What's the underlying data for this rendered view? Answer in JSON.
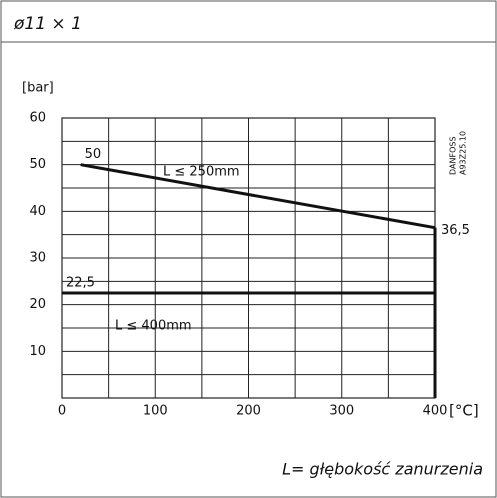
{
  "header": "ø11 × 1",
  "footer": "L= głębokość zanurzenia",
  "code": [
    "DANFOSS",
    "A93Z25.10"
  ],
  "chart_data": {
    "type": "line",
    "ylabel": "[bar]",
    "xlabel": "[°C]",
    "xlim": [
      0,
      400
    ],
    "xticks": [
      0,
      100,
      200,
      300,
      400
    ],
    "xminor": [
      50,
      150,
      250,
      350
    ],
    "ylim": [
      0,
      60
    ],
    "yticks": [
      10,
      20,
      30,
      40,
      50,
      60
    ],
    "yminor": [
      5,
      15,
      25,
      35,
      45,
      55
    ],
    "grid": true,
    "series": [
      {
        "name": "L ≤ 250mm",
        "color": "#111111",
        "x": [
          20,
          400
        ],
        "values": [
          50,
          36.5
        ],
        "value_labels": [
          "50",
          "36,5"
        ]
      },
      {
        "name": "L ≤ 400mm",
        "color": "#111111",
        "x": [
          0,
          400
        ],
        "values": [
          22.5,
          22.5
        ],
        "value_labels": [
          "22,5",
          null
        ]
      }
    ]
  }
}
